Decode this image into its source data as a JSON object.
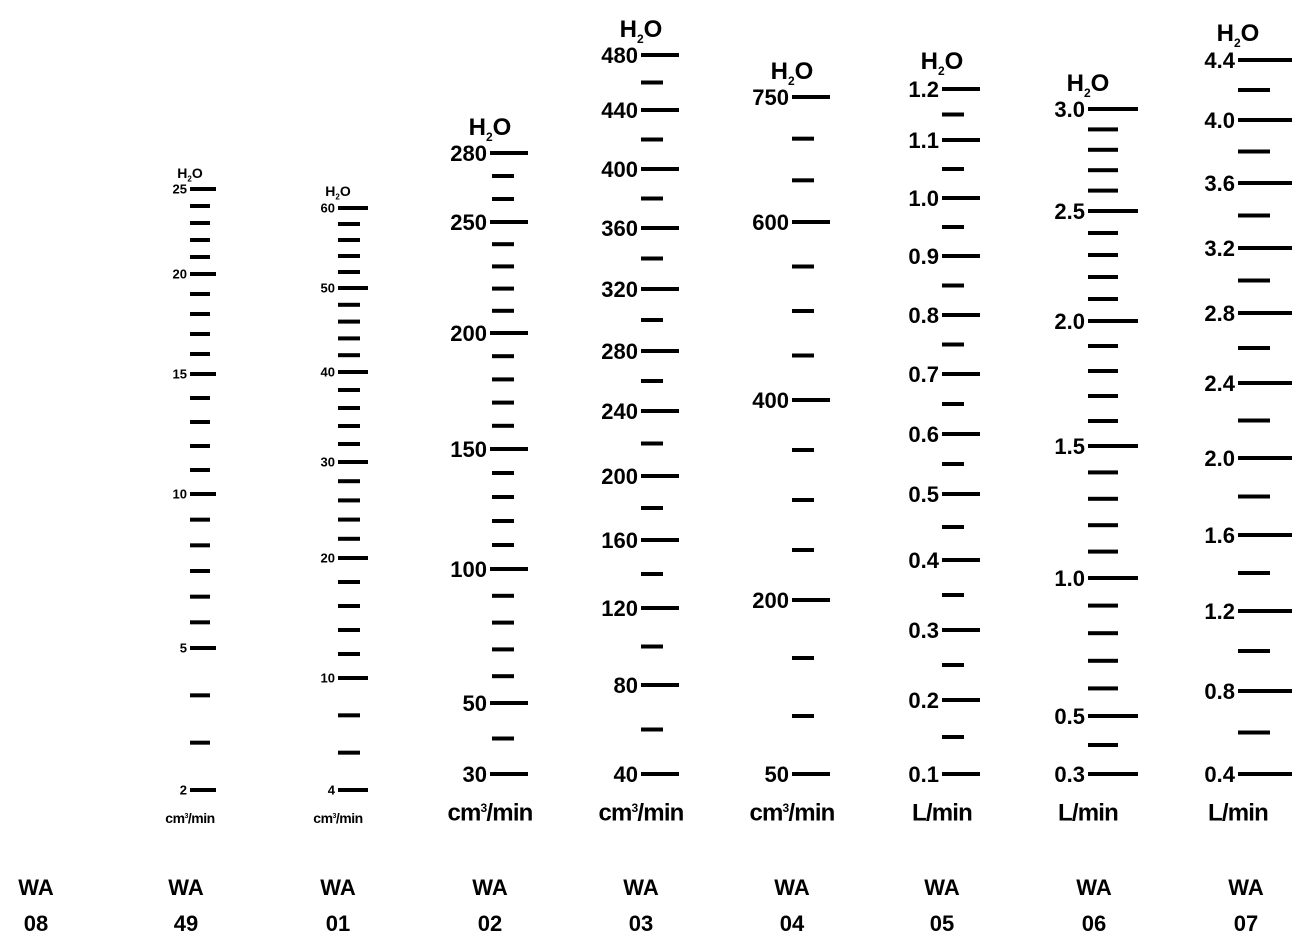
{
  "scales": [
    {
      "model_prefix": "WA",
      "model_number": "49",
      "header": {
        "main": "H",
        "sub": "2",
        "tail": "O"
      },
      "unit": {
        "main": "cm",
        "sup": "3",
        "tail": "/min"
      },
      "labels": [
        "2",
        "5",
        "10",
        "15",
        "20",
        "25"
      ],
      "major_count": 6,
      "minor_between": [
        2,
        5,
        4,
        4,
        4
      ]
    },
    {
      "model_prefix": "WA",
      "model_number": "01",
      "header": {
        "main": "H",
        "sub": "2",
        "tail": "O"
      },
      "unit": {
        "main": "cm",
        "sup": "3",
        "tail": "/min"
      },
      "labels": [
        "4",
        "10",
        "20",
        "30",
        "40",
        "50",
        "60"
      ],
      "major_count": 7,
      "minor_between": [
        2,
        4,
        4,
        4,
        4,
        4
      ]
    },
    {
      "model_prefix": "WA",
      "model_number": "02",
      "header": {
        "main": "H",
        "sub": "2",
        "tail": "O"
      },
      "unit": {
        "main": "cm",
        "sup": "3",
        "tail": "/min"
      },
      "labels": [
        "30",
        "50",
        "100",
        "150",
        "200",
        "250",
        "280"
      ],
      "major_count": 7,
      "minor_between": [
        1,
        4,
        4,
        4,
        4,
        2
      ]
    },
    {
      "model_prefix": "WA",
      "model_number": "03",
      "header": {
        "main": "H",
        "sub": "2",
        "tail": "O"
      },
      "unit": {
        "main": "cm",
        "sup": "3",
        "tail": "/min"
      },
      "labels": [
        "40",
        "80",
        "120",
        "160",
        "200",
        "240",
        "280",
        "320",
        "360",
        "400",
        "440",
        "480"
      ],
      "major_count": 12,
      "minor_between": [
        1,
        1,
        1,
        1,
        1,
        1,
        1,
        1,
        1,
        1,
        1
      ]
    },
    {
      "model_prefix": "WA",
      "model_number": "04",
      "header": {
        "main": "H",
        "sub": "2",
        "tail": "O"
      },
      "unit": {
        "main": "cm",
        "sup": "3",
        "tail": "/min"
      },
      "labels": [
        "50",
        "200",
        "400",
        "600",
        "750"
      ],
      "major_count": 5,
      "minor_between": [
        2,
        3,
        3,
        2
      ]
    },
    {
      "model_prefix": "WA",
      "model_number": "05",
      "header": {
        "main": "H",
        "sub": "2",
        "tail": "O"
      },
      "unit": {
        "main": "L/min",
        "sup": "",
        "tail": ""
      },
      "labels": [
        "0.1",
        "0.2",
        "0.3",
        "0.4",
        "0.5",
        "0.6",
        "0.7",
        "0.8",
        "0.9",
        "1.0",
        "1.1",
        "1.2"
      ],
      "major_count": 12,
      "minor_between": [
        1,
        1,
        1,
        1,
        1,
        1,
        1,
        1,
        1,
        1,
        1
      ]
    },
    {
      "model_prefix": "WA",
      "model_number": "06",
      "header": {
        "main": "H",
        "sub": "2",
        "tail": "O"
      },
      "unit": {
        "main": "L/min",
        "sup": "",
        "tail": ""
      },
      "labels": [
        "0.3",
        "0.5",
        "1.0",
        "1.5",
        "2.0",
        "2.5",
        "3.0"
      ],
      "major_count": 7,
      "minor_between": [
        1,
        4,
        4,
        4,
        4,
        4
      ]
    },
    {
      "model_prefix": "WA",
      "model_number": "07",
      "header": {
        "main": "H",
        "sub": "2",
        "tail": "O"
      },
      "unit": {
        "main": "L/min",
        "sup": "",
        "tail": ""
      },
      "labels": [
        "0.4",
        "0.8",
        "1.2",
        "1.6",
        "2.0",
        "2.4",
        "2.8",
        "3.2",
        "3.6",
        "4.0",
        "4.4"
      ],
      "major_count": 11,
      "minor_between": [
        1,
        1,
        1,
        1,
        1,
        1,
        1,
        1,
        1,
        1
      ]
    }
  ],
  "standalone": {
    "model_prefix": "WA",
    "model_number": "08"
  }
}
